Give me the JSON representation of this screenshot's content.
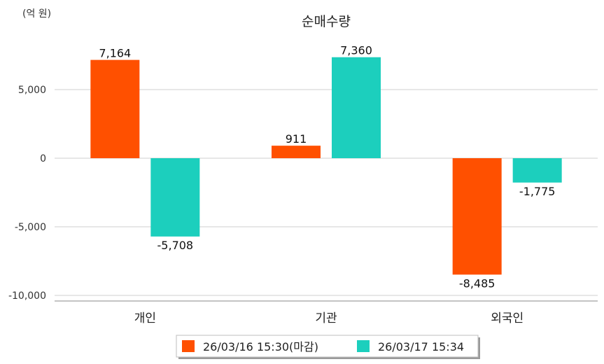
{
  "chart_data": {
    "type": "bar",
    "title": "순매수량",
    "unit_label": "(억 원)",
    "categories": [
      "개인",
      "기관",
      "외국인"
    ],
    "series": [
      {
        "name": "26/03/16 15:30(마감)",
        "color": "#ff5000",
        "values": [
          7164,
          911,
          -8485
        ],
        "labels": [
          "7,164",
          "911",
          "-8,485"
        ]
      },
      {
        "name": "26/03/17 15:34",
        "color": "#1ccfbd",
        "values": [
          -5708,
          7360,
          -1775
        ],
        "labels": [
          "-5,708",
          "7,360",
          "-1,775"
        ]
      }
    ],
    "yticks": [
      5000,
      0,
      -5000,
      -10000
    ],
    "ytick_labels": [
      "5,000",
      "0",
      "-5,000",
      "-10,000"
    ],
    "ylim": [
      -10500,
      9000
    ],
    "grid": true,
    "legend_position": "bottom-center"
  }
}
